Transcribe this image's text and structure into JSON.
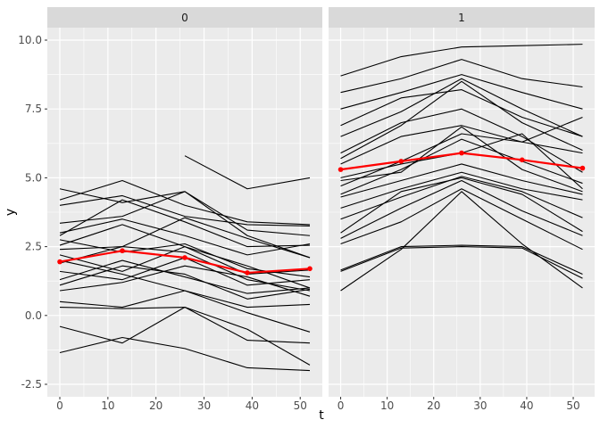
{
  "chart_data": {
    "type": "line",
    "title": "",
    "subtitle": "",
    "xlabel": "t",
    "ylabel": "y",
    "x": [
      0,
      13,
      26,
      39,
      52
    ],
    "x_tick_labels": [
      "0",
      "10",
      "20",
      "30",
      "40",
      "50"
    ],
    "x_tick_values": [
      0,
      10,
      20,
      30,
      40,
      50
    ],
    "x_minor_values": [
      5,
      15,
      25,
      35,
      45
    ],
    "y_tick_labels": [
      "10.0",
      "7.5",
      "5.0",
      "2.5",
      "0.0",
      "-2.5"
    ],
    "y_tick_values": [
      10.0,
      7.5,
      5.0,
      2.5,
      0.0,
      -2.5
    ],
    "y_minor_values": [
      8.75,
      6.25,
      3.75,
      1.25,
      -1.25
    ],
    "xlim": [
      -2.6,
      54.6
    ],
    "ylim": [
      -2.95,
      10.45
    ],
    "grid": true,
    "legend": "none",
    "facets": [
      {
        "label": "0",
        "mean": [
          1.95,
          2.35,
          2.1,
          1.55,
          1.7
        ],
        "series": [
          [
            4.6,
            4.1,
            4.5,
            3.1,
            2.9
          ],
          [
            4.2,
            4.9,
            4.0,
            3.4,
            3.3
          ],
          [
            4.0,
            4.35,
            3.6,
            3.3,
            3.25
          ],
          [
            3.35,
            3.6,
            4.5,
            2.9,
            2.1
          ],
          [
            3.0,
            3.5,
            2.9,
            2.2,
            2.6
          ],
          [
            2.9,
            4.2,
            3.4,
            2.5,
            2.55
          ],
          [
            2.75,
            2.3,
            2.6,
            1.7,
            1.4
          ],
          [
            2.55,
            3.3,
            2.5,
            1.8,
            1.0
          ],
          [
            2.4,
            2.5,
            3.55,
            2.8,
            2.1
          ],
          [
            2.2,
            1.6,
            2.5,
            1.5,
            1.65
          ],
          [
            2.0,
            1.5,
            0.9,
            0.3,
            0.4
          ],
          [
            1.9,
            2.5,
            2.3,
            1.3,
            0.9
          ],
          [
            1.6,
            1.3,
            2.1,
            1.1,
            1.3
          ],
          [
            1.3,
            2.0,
            1.4,
            0.8,
            1.0
          ],
          [
            1.1,
            1.8,
            1.5,
            0.6,
            0.95
          ],
          [
            0.9,
            1.2,
            1.8,
            1.4,
            0.7
          ],
          [
            0.5,
            0.3,
            0.9,
            0.1,
            -0.6
          ],
          [
            0.3,
            0.25,
            0.3,
            -0.5,
            -1.8
          ],
          [
            -0.4,
            -1.0,
            0.3,
            -0.9,
            -1.0
          ],
          [
            -1.35,
            -0.8,
            -1.2,
            -1.9,
            -2.0
          ],
          [
            null,
            null,
            5.8,
            4.6,
            5.0
          ]
        ]
      },
      {
        "label": "1",
        "mean": [
          5.3,
          5.6,
          5.9,
          5.65,
          5.35
        ],
        "series": [
          [
            8.7,
            9.4,
            9.75,
            9.8,
            9.85
          ],
          [
            8.1,
            8.6,
            9.3,
            8.6,
            8.3
          ],
          [
            7.5,
            8.1,
            8.75,
            8.1,
            7.5
          ],
          [
            6.9,
            7.9,
            8.2,
            7.2,
            6.5
          ],
          [
            6.5,
            7.4,
            8.6,
            7.5,
            6.5
          ],
          [
            5.9,
            7.0,
            7.5,
            6.5,
            5.2
          ],
          [
            5.7,
            6.9,
            8.5,
            7.0,
            6.0
          ],
          [
            5.5,
            6.5,
            6.9,
            6.3,
            7.2
          ],
          [
            5.0,
            5.5,
            5.9,
            6.6,
            4.6
          ],
          [
            4.9,
            5.2,
            6.85,
            5.3,
            4.5
          ],
          [
            4.7,
            5.6,
            6.6,
            6.3,
            5.9
          ],
          [
            4.4,
            5.3,
            6.4,
            5.6,
            4.8
          ],
          [
            4.3,
            4.9,
            5.5,
            4.9,
            4.4
          ],
          [
            3.9,
            4.6,
            5.2,
            4.6,
            4.2
          ],
          [
            3.5,
            4.3,
            5.05,
            4.5,
            3.55
          ],
          [
            3.0,
            4.5,
            5.0,
            4.4,
            3.05
          ],
          [
            2.8,
            3.9,
            4.9,
            3.8,
            2.9
          ],
          [
            2.6,
            3.4,
            4.6,
            3.5,
            2.4
          ],
          [
            1.65,
            2.5,
            2.55,
            2.5,
            1.5
          ],
          [
            1.6,
            2.45,
            2.5,
            2.45,
            1.35
          ],
          [
            0.9,
            2.4,
            4.5,
            2.6,
            1.0
          ]
        ]
      }
    ],
    "colors": {
      "mean_line": "#FF0000",
      "subject_line": "#000000",
      "panel_bg": "#EBEBEB",
      "strip_bg": "#D9D9D9",
      "grid": "#FFFFFF",
      "tick_mark": "#333333",
      "tick_text": "#4D4D4D",
      "axis_title_text": "#000000",
      "strip_text": "#1A1A1A"
    }
  }
}
